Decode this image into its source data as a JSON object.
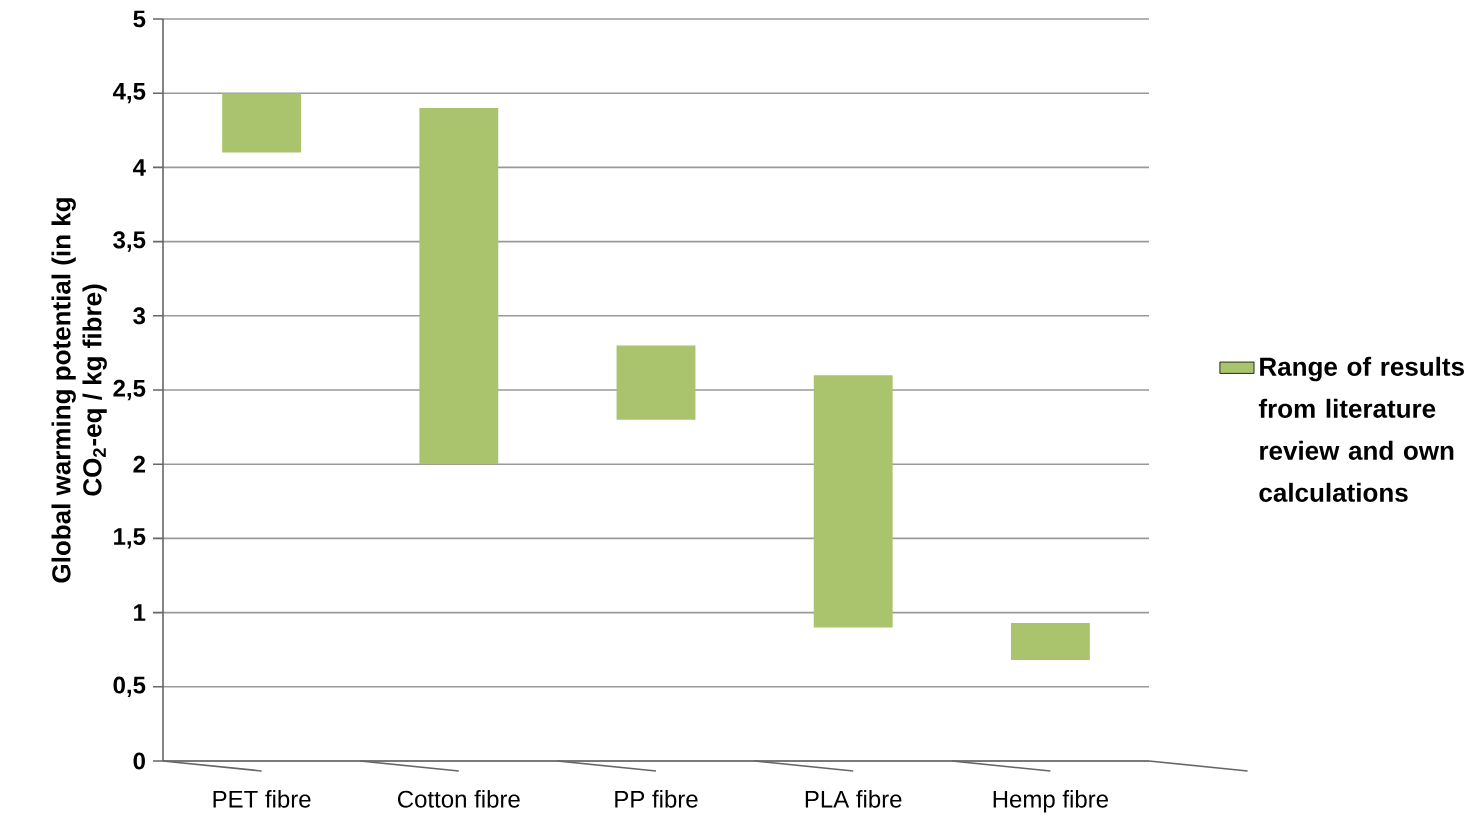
{
  "chart_data": {
    "type": "bar",
    "categories": [
      "PET fibre",
      "Cotton fibre",
      "PP fibre",
      "PLA fibre",
      "Hemp fibre"
    ],
    "ylabel": "Global warming potential (in kg CO$_{2}$-eq / kg fibre)",
    "series": [
      {
        "name": "Range of results from literature review and own calculations",
        "color": "#a9c46c",
        "base": [
          4.1,
          2.0,
          2.3,
          0.9,
          0.68
        ],
        "values": [
          0.4,
          2.4,
          0.5,
          1.7,
          0.25
        ]
      }
    ],
    "ylim": [
      0,
      5
    ],
    "yticks": [
      0,
      {
        "value": 0.5,
        "label": "0,5"
      },
      1,
      {
        "value": 1.5,
        "label": "1,5"
      },
      2,
      {
        "value": 2.5,
        "label": "2,5"
      },
      3,
      {
        "value": 3.5,
        "label": "3,5"
      },
      4,
      {
        "value": 4.5,
        "label": "4,5"
      },
      5
    ],
    "grid": "y",
    "legend": "right"
  }
}
